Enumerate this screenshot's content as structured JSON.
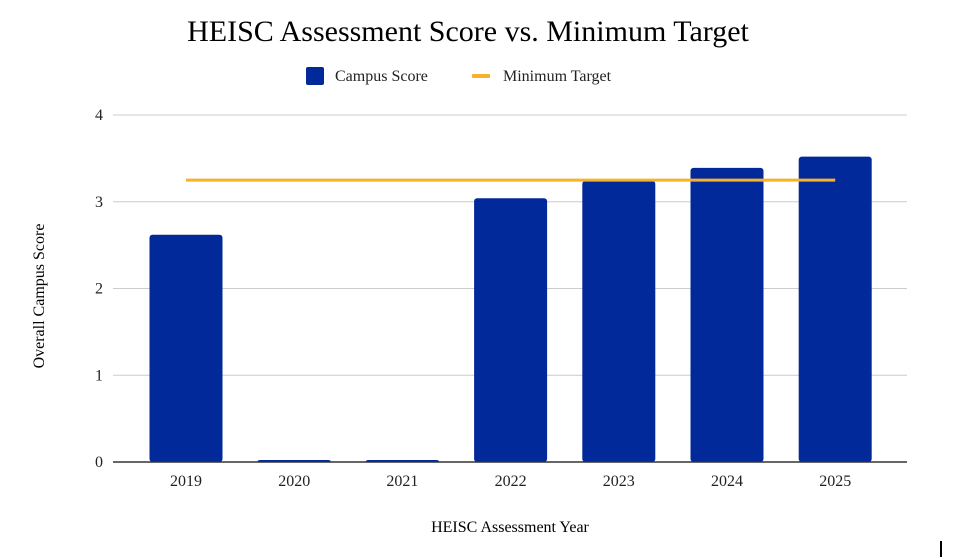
{
  "chart_data": {
    "type": "bar",
    "title": "HEISC Assessment Score vs. Minimum Target",
    "xlabel": "HEISC Assessment Year",
    "ylabel": "Overall Campus Score",
    "categories": [
      "2019",
      "2020",
      "2021",
      "2022",
      "2023",
      "2024",
      "2025"
    ],
    "series": [
      {
        "name": "Campus Score",
        "type": "bar",
        "color": "#02299a",
        "values": [
          2.62,
          0.02,
          0.02,
          3.04,
          3.24,
          3.39,
          3.52
        ]
      },
      {
        "name": "Minimum Target",
        "type": "line",
        "color": "#f9b128",
        "values": [
          3.25,
          3.25,
          3.25,
          3.25,
          3.25,
          3.25,
          3.25
        ]
      }
    ],
    "ylim": [
      0,
      4
    ],
    "yticks": [
      "0",
      "1",
      "2",
      "3",
      "4"
    ],
    "grid": true,
    "legend_position": "top-center"
  }
}
